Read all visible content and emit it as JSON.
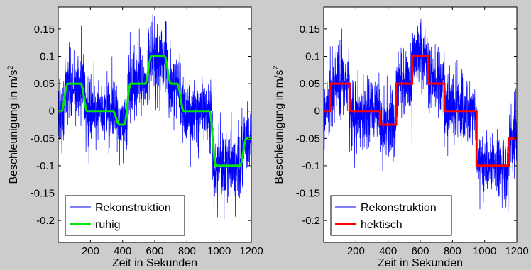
{
  "chart_data": [
    {
      "type": "line",
      "xlabel": "Zeit in Sekunden",
      "ylabel": "Beschleunigung in m/s",
      "ylabel_superscript": "2",
      "xlim": [
        0,
        1200
      ],
      "ylim": [
        -0.24,
        0.19
      ],
      "xticks": [
        "200",
        "400",
        "600",
        "800",
        "1000",
        "1200"
      ],
      "xtick_values": [
        200,
        400,
        600,
        800,
        1000,
        1200
      ],
      "yticks": [
        "0.15",
        "0.1",
        "0.05",
        "0",
        "-0.05",
        "-0.1",
        "-0.15",
        "-0.2"
      ],
      "ytick_values": [
        0.15,
        0.1,
        0.05,
        0,
        -0.05,
        -0.1,
        -0.15,
        -0.2
      ],
      "grid": false,
      "legend_placement": "bottom-left",
      "series": [
        {
          "name": "Rekonstruktion",
          "color": "#0000ff",
          "style": "noisy",
          "noise_sd": 0.035
        },
        {
          "name": "ruhig",
          "color": "#00e600",
          "style": "smooth",
          "steps": [
            [
              0,
              40,
              0
            ],
            [
              40,
              160,
              0.05
            ],
            [
              160,
              360,
              0
            ],
            [
              360,
              430,
              -0.025
            ],
            [
              430,
              560,
              0.05
            ],
            [
              560,
              680,
              0.1
            ],
            [
              680,
              760,
              0.05
            ],
            [
              760,
              960,
              0
            ],
            [
              960,
              1150,
              -0.1
            ],
            [
              1150,
              1200,
              -0.05
            ]
          ]
        }
      ]
    },
    {
      "type": "line",
      "xlabel": "Zeit in Sekunden",
      "ylabel": "Beschleunigung in m/s",
      "ylabel_superscript": "2",
      "xlim": [
        0,
        1200
      ],
      "ylim": [
        -0.24,
        0.19
      ],
      "xticks": [
        "200",
        "400",
        "600",
        "800",
        "1000",
        "1200"
      ],
      "xtick_values": [
        200,
        400,
        600,
        800,
        1000,
        1200
      ],
      "yticks": [
        "0.15",
        "0.1",
        "0.05",
        "0",
        "-0.05",
        "-0.1",
        "-0.15",
        "-0.2"
      ],
      "ytick_values": [
        0.15,
        0.1,
        0.05,
        0,
        -0.05,
        -0.1,
        -0.15,
        -0.2
      ],
      "grid": false,
      "legend_placement": "bottom-left",
      "series": [
        {
          "name": "Rekonstruktion",
          "color": "#0000ff",
          "style": "noisy",
          "noise_sd": 0.035
        },
        {
          "name": "hektisch",
          "color": "#ff0000",
          "style": "step",
          "steps": [
            [
              0,
              40,
              0
            ],
            [
              40,
              160,
              0.05
            ],
            [
              160,
              350,
              0
            ],
            [
              350,
              450,
              -0.025
            ],
            [
              450,
              550,
              0.05
            ],
            [
              550,
              650,
              0.1
            ],
            [
              650,
              750,
              0.05
            ],
            [
              750,
              950,
              0
            ],
            [
              950,
              1150,
              -0.1
            ],
            [
              1150,
              1200,
              -0.05
            ]
          ]
        }
      ]
    }
  ]
}
